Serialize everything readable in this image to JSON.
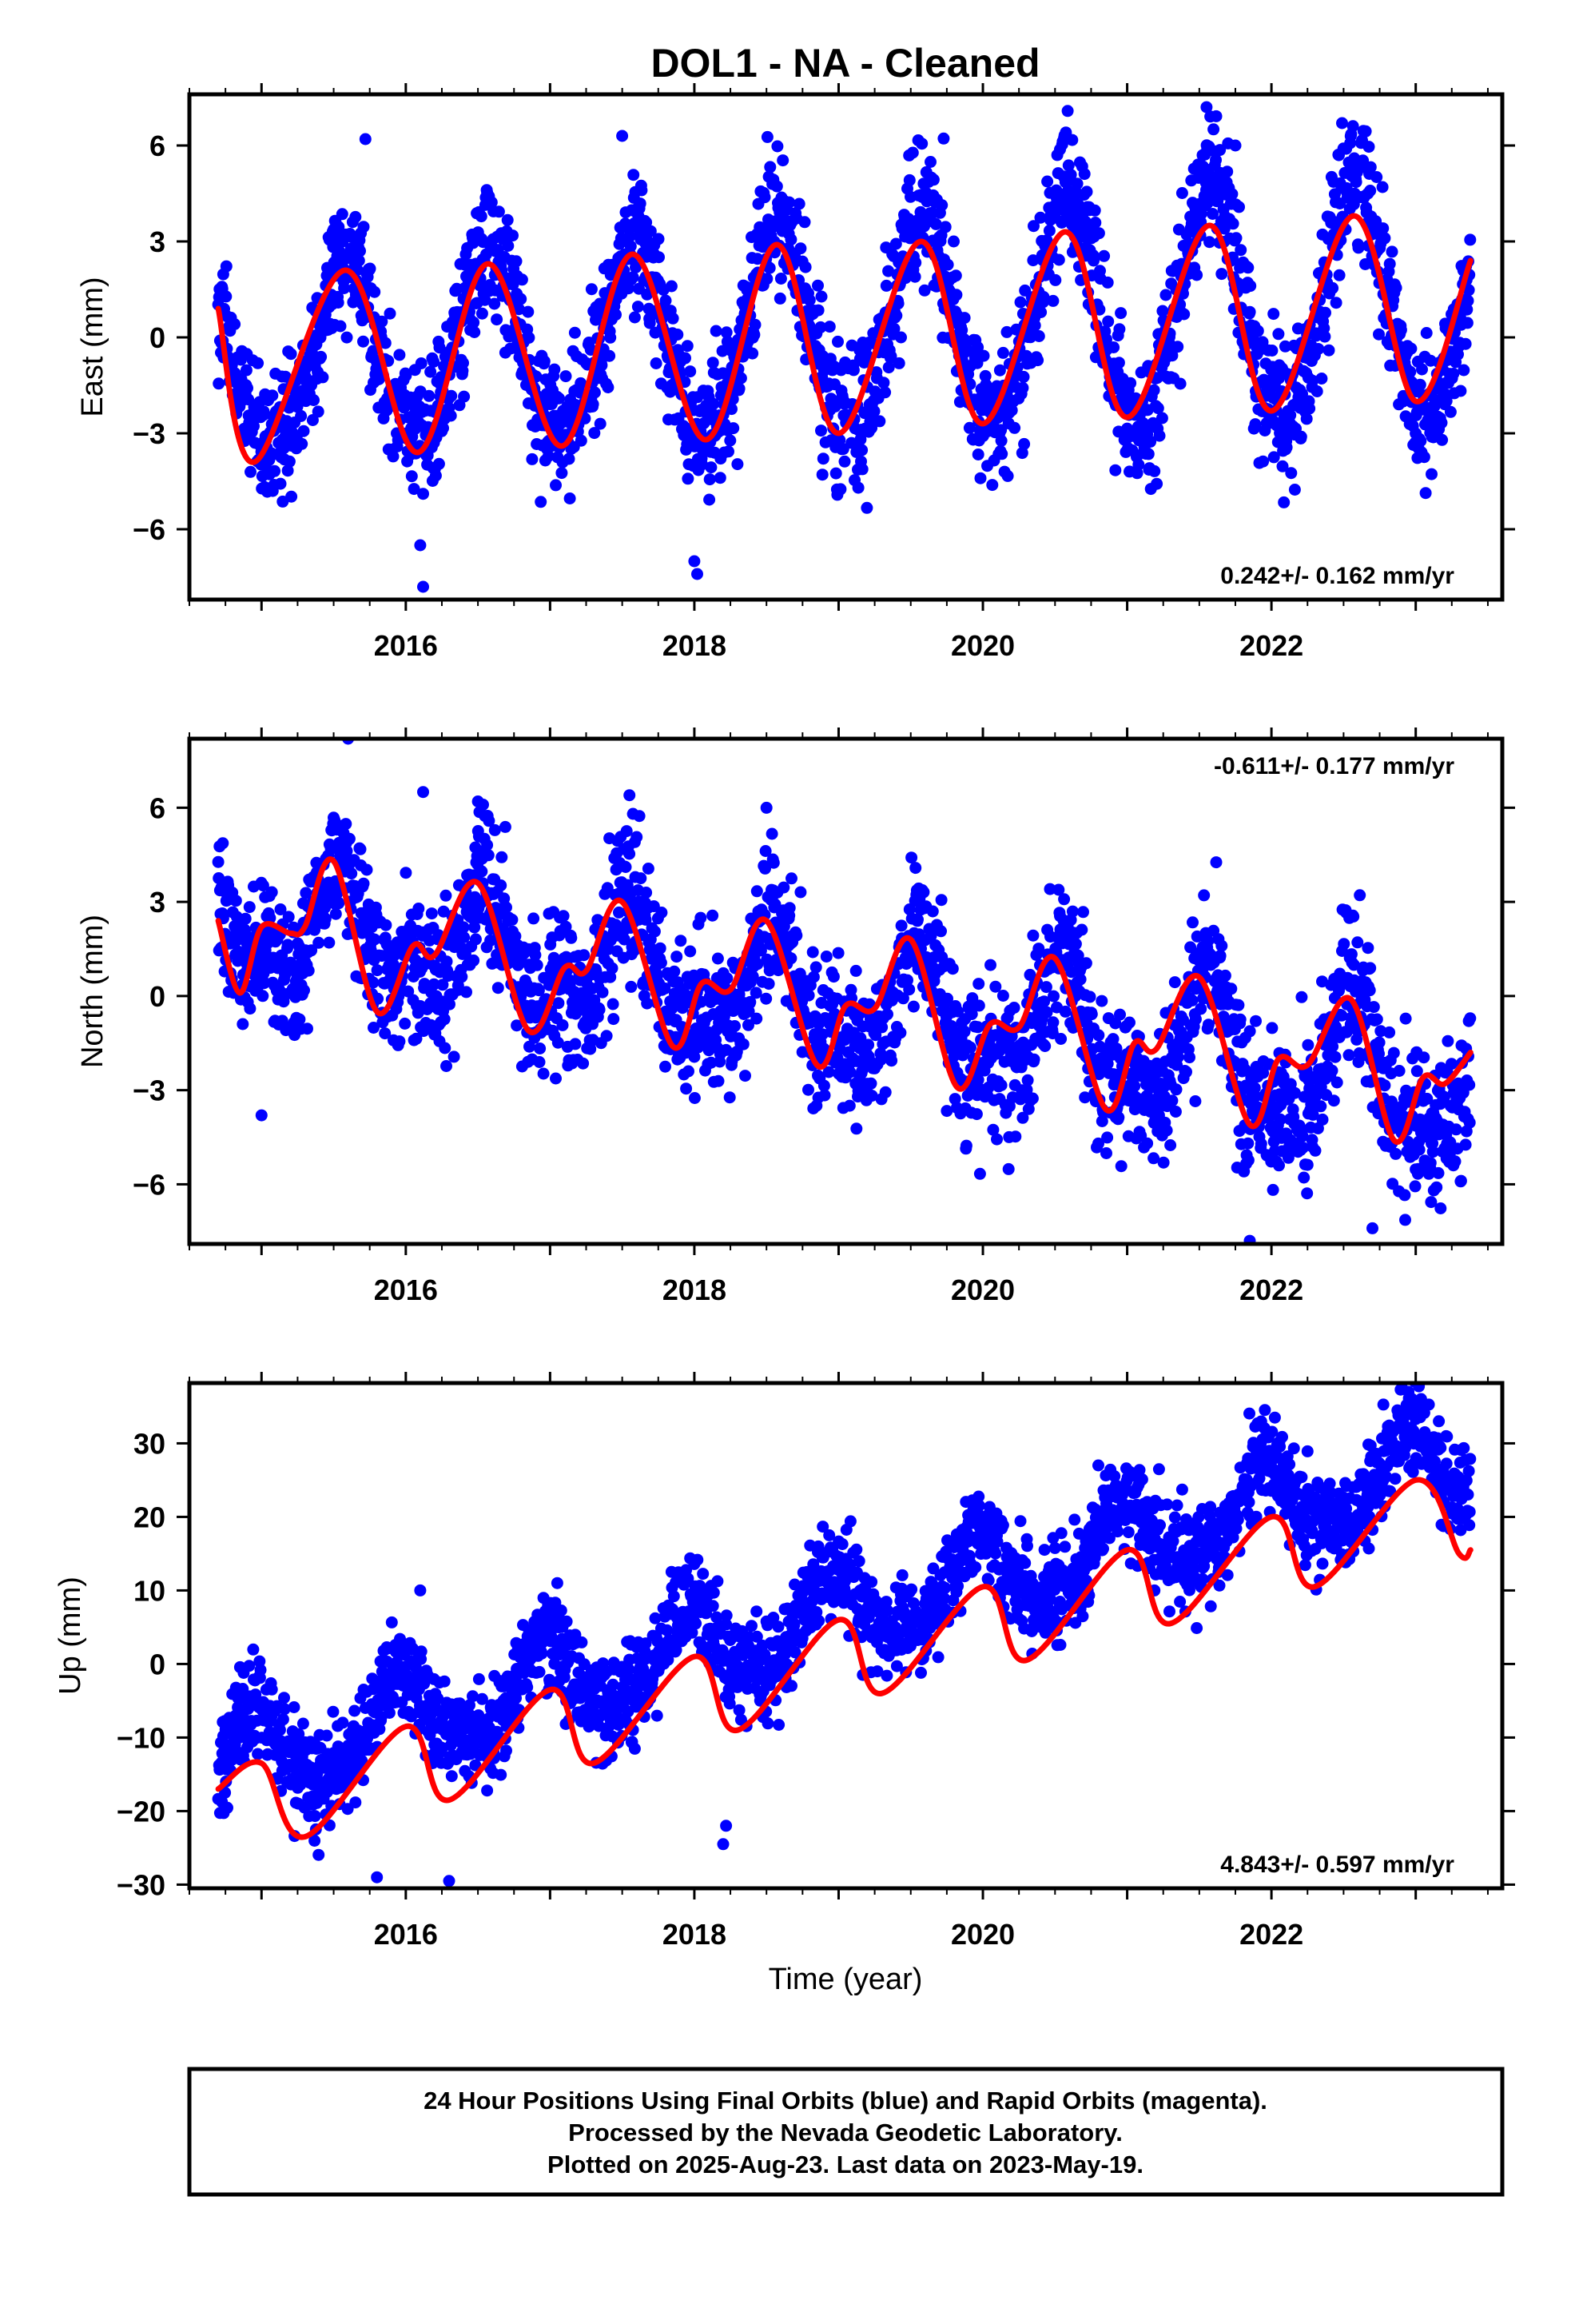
{
  "title": "DOL1  - NA - Cleaned",
  "xlabel": "Time (year)",
  "footer": {
    "line1": "24 Hour Positions Using Final Orbits (blue) and Rapid Orbits (magenta).",
    "line2": "Processed by the Nevada Geodetic Laboratory.",
    "line3": "Plotted on 2025-Aug-23. Last data on 2023-May-19."
  },
  "colors": {
    "final_orbits": "#0000ff",
    "fit_line": "#ff0000",
    "frame": "#000000"
  },
  "chart_data": [
    {
      "type": "scatter",
      "panel": "east",
      "ylabel": "East (mm)",
      "rate_text": "0.242+/- 0.162 mm/yr",
      "rate_position": "bottom-right",
      "xlim": [
        2014.5,
        2023.6
      ],
      "ylim": [
        -8.2,
        7.6
      ],
      "xticks": [
        2016,
        2018,
        2020,
        2022
      ],
      "xtick_labels": [
        "2016",
        "2018",
        "2020",
        "2022"
      ],
      "yticks": [
        -6,
        -3,
        0,
        3,
        6
      ],
      "ytick_labels": [
        "−6",
        "−3",
        "0",
        "3",
        "6"
      ],
      "time_range": [
        2014.7,
        2023.38
      ],
      "model": {
        "offset": -0.8,
        "trend": 0.242,
        "annual_amp": [
          2.8,
          3.3,
          3.8
        ],
        "annual_peak": 2015.58,
        "semi_annual_amp": 0.3,
        "noise_sd": 1.05
      },
      "fit_line": {
        "x": [
          2014.7,
          2014.95,
          2015.58,
          2016.08,
          2016.57,
          2017.08,
          2017.57,
          2018.08,
          2018.57,
          2019.0,
          2019.57,
          2020.0,
          2020.57,
          2021.0,
          2021.57,
          2022.0,
          2022.57,
          2023.0,
          2023.38
        ],
        "y": [
          0.9,
          -3.9,
          2.1,
          -3.6,
          2.3,
          -3.4,
          2.6,
          -3.2,
          2.9,
          -3.0,
          3.0,
          -2.7,
          3.3,
          -2.5,
          3.5,
          -2.3,
          3.8,
          -2.0,
          2.4
        ]
      },
      "extra_points": {
        "x": [
          2015.72,
          2016.1,
          2016.12,
          2017.5,
          2018.0,
          2018.02,
          2021.55,
          2021.75
        ],
        "y": [
          6.2,
          -6.5,
          -7.8,
          6.3,
          -7.0,
          -7.4,
          7.2,
          6.0
        ]
      }
    },
    {
      "type": "scatter",
      "panel": "north",
      "ylabel": "North (mm)",
      "rate_text": "-0.611+/- 0.177 mm/yr",
      "rate_position": "top-right",
      "xlim": [
        2014.5,
        2023.6
      ],
      "ylim": [
        -7.9,
        8.2
      ],
      "xticks": [
        2016,
        2018,
        2020,
        2022
      ],
      "xtick_labels": [
        "2016",
        "2018",
        "2020",
        "2022"
      ],
      "yticks": [
        -6,
        -3,
        0,
        3,
        6
      ],
      "ytick_labels": [
        "−6",
        "−3",
        "0",
        "3",
        "6"
      ],
      "time_range": [
        2014.7,
        2023.38
      ],
      "model": {
        "offset": 2.4,
        "trend": -0.611,
        "annual_amp": [
          1.6,
          1.8,
          2.1
        ],
        "annual_peak": 2015.55,
        "semi_annual_amp": 0.8,
        "noise_sd": 1.15
      },
      "fit_line": {
        "x": [
          2014.7,
          2014.85,
          2015.0,
          2015.2,
          2015.3,
          2015.5,
          2015.8,
          2016.05,
          2016.2,
          2016.5,
          2016.85,
          2017.1,
          2017.25,
          2017.5,
          2017.85,
          2018.05,
          2018.25,
          2018.5,
          2018.85,
          2019.05,
          2019.25,
          2019.5,
          2019.82,
          2020.05,
          2020.25,
          2020.5,
          2020.85,
          2021.05,
          2021.2,
          2021.5,
          2021.85,
          2022.05,
          2022.25,
          2022.55,
          2022.85,
          2023.05,
          2023.2,
          2023.38
        ],
        "y": [
          2.4,
          0.1,
          2.2,
          2.0,
          2.2,
          4.3,
          -0.5,
          1.6,
          1.3,
          3.6,
          -1.1,
          0.9,
          0.8,
          3.0,
          -1.6,
          0.4,
          0.2,
          2.4,
          -2.2,
          -0.3,
          -0.4,
          1.8,
          -2.9,
          -0.9,
          -1.0,
          1.2,
          -3.6,
          -1.5,
          -1.7,
          0.6,
          -4.1,
          -2.0,
          -2.2,
          -0.1,
          -4.6,
          -2.6,
          -2.8,
          -1.8
        ]
      },
      "extra_points": {
        "x": [
          2015.6,
          2016.12,
          2016.5,
          2017.55,
          2015.0,
          2018.5,
          2020.8,
          2021.85,
          2022.7
        ],
        "y": [
          8.2,
          6.5,
          6.2,
          6.4,
          -3.8,
          6.0,
          -4.7,
          -7.8,
          -7.4
        ]
      }
    },
    {
      "type": "scatter",
      "panel": "up",
      "ylabel": "Up (mm)",
      "rate_text": "4.843+/- 0.597 mm/yr",
      "rate_position": "bottom-right",
      "xlim": [
        2014.5,
        2023.6
      ],
      "ylim": [
        -30.5,
        38.2
      ],
      "xticks": [
        2016,
        2018,
        2020,
        2022
      ],
      "xtick_labels": [
        "2016",
        "2018",
        "2020",
        "2022"
      ],
      "yticks": [
        -30,
        -20,
        -10,
        0,
        10,
        20,
        30
      ],
      "ytick_labels": [
        "−30",
        "−20",
        "−10",
        "0",
        "10",
        "20",
        "30"
      ],
      "time_range": [
        2014.7,
        2023.38
      ],
      "model": {
        "offset": -14.0,
        "trend": 4.843,
        "annual_amp": [
          5.5,
          5.5,
          5.5
        ],
        "annual_peak": 2015.95,
        "semi_annual_amp": 1.0,
        "noise_sd": 3.2
      },
      "fit_line": {
        "x": [
          2014.7,
          2015.0,
          2015.3,
          2016.0,
          2016.3,
          2017.0,
          2017.3,
          2018.0,
          2018.3,
          2019.0,
          2019.3,
          2020.0,
          2020.3,
          2021.0,
          2021.3,
          2022.0,
          2022.3,
          2023.0,
          2023.3,
          2023.38
        ],
        "y": [
          -17.0,
          -13.5,
          -23.5,
          -8.5,
          -18.5,
          -3.5,
          -13.5,
          1.0,
          -9.0,
          6.0,
          -4.0,
          10.5,
          0.5,
          15.5,
          5.5,
          20.0,
          10.5,
          25.0,
          15.0,
          15.5
        ]
      },
      "extra_points": {
        "x": [
          2016.1,
          2016.3,
          2017.05,
          2018.2,
          2018.22,
          2020.8,
          2022.95,
          2015.8
        ],
        "y": [
          10.0,
          -29.5,
          11.0,
          -24.5,
          -22.0,
          27.0,
          37.0,
          -29.0
        ]
      }
    }
  ]
}
